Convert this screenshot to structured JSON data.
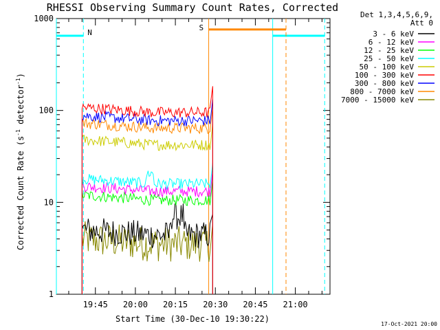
{
  "chart_data": {
    "type": "line",
    "title": "RHESSI Observing Summary Count Rates, Corrected",
    "xlabel": "Start Time (30-Dec-10 19:30:22)",
    "ylabel_main": "Corrected Count Rate (s",
    "ylabel_sup1": "-1",
    "ylabel_mid": " detector",
    "ylabel_sup2": "-1",
    "ylabel_end": ")",
    "yscale": "log",
    "ylim": [
      1,
      1000
    ],
    "xlim": [
      "19:30:22",
      "21:13"
    ],
    "x_ticks": [
      "19:45",
      "20:00",
      "20:15",
      "20:30",
      "20:45",
      "21:00"
    ],
    "y_ticks": [
      "1",
      "10",
      "100",
      "1000"
    ],
    "timestamp": "17-Oct-2021 20:00",
    "legend": {
      "placement": "right",
      "header1": "Det 1,3,4,5,6,9,",
      "header2": "Att 0"
    },
    "series": [
      {
        "name": "3 - 6 keV",
        "color": "#000000",
        "level": 5
      },
      {
        "name": "6 - 12 keV",
        "color": "#ff00ff",
        "level": 15
      },
      {
        "name": "12 - 25 keV",
        "color": "#00ff00",
        "level": 12
      },
      {
        "name": "25 - 50 keV",
        "color": "#00ffff",
        "level": 18
      },
      {
        "name": "50 - 100 keV",
        "color": "#cccc00",
        "level": 48
      },
      {
        "name": "100 - 300 keV",
        "color": "#ff0000",
        "level": 108
      },
      {
        "name": "300 - 800 keV",
        "color": "#0000ff",
        "level": 88
      },
      {
        "name": "800 - 7000 keV",
        "color": "#ff8800",
        "level": 73
      },
      {
        "name": "7000 - 15000 keV",
        "color": "#888800",
        "level": 4
      }
    ],
    "annotations": [
      {
        "label": "N",
        "color": "#00ffff",
        "kind": "night"
      },
      {
        "label": "S",
        "color": "#ff8800",
        "kind": "saa"
      }
    ]
  }
}
